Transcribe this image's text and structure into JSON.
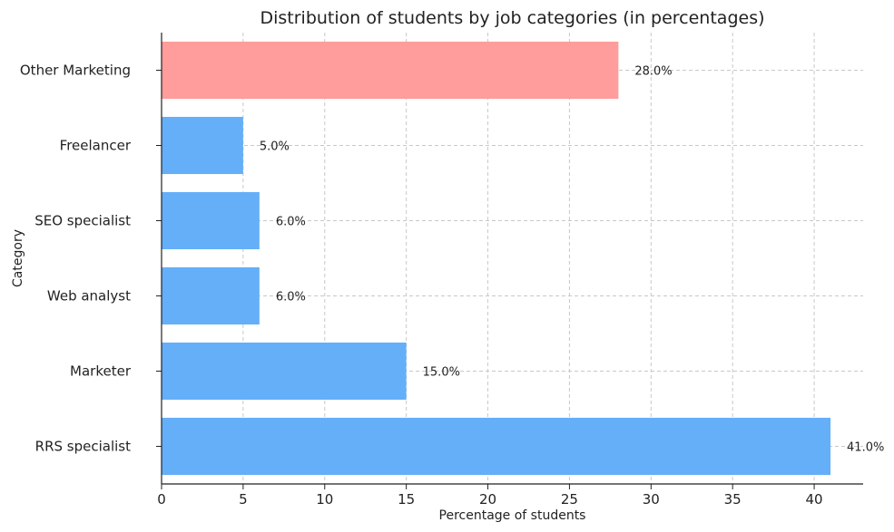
{
  "chart_data": {
    "type": "bar",
    "orientation": "horizontal",
    "title": "Distribution of students by job categories (in percentages)",
    "xlabel": "Percentage of students",
    "ylabel": "Category",
    "categories": [
      "RRS specialist",
      "Marketer",
      "Web analyst",
      "SEO specialist",
      "Freelancer",
      "Other Marketing"
    ],
    "values": [
      41.0,
      15.0,
      6.0,
      6.0,
      5.0,
      28.0
    ],
    "value_labels": [
      "41.0%",
      "15.0%",
      "6.0%",
      "6.0%",
      "5.0%",
      "28.0%"
    ],
    "bar_colors": [
      "#64aff8",
      "#64aff8",
      "#64aff8",
      "#64aff8",
      "#64aff8",
      "#ff9c9c"
    ],
    "xlim": [
      0,
      43
    ],
    "xticks": [
      0,
      5,
      10,
      15,
      20,
      25,
      30,
      35,
      40
    ],
    "grid": true,
    "legend": "none"
  }
}
